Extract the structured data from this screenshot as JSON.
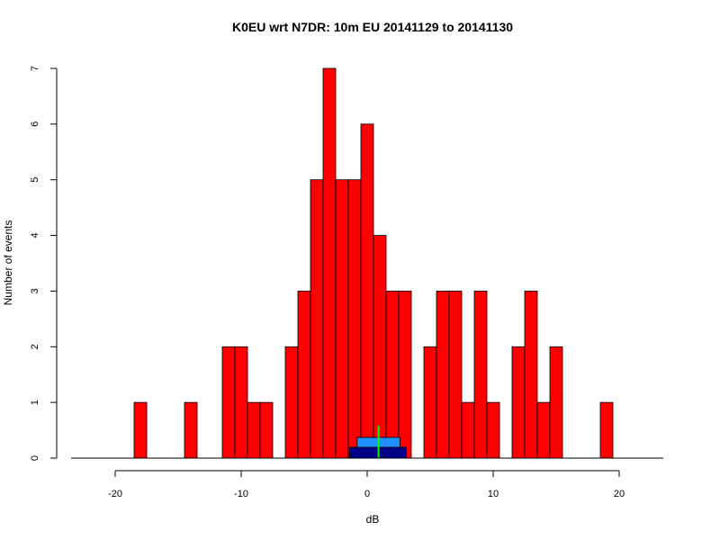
{
  "chart_data": {
    "type": "bar",
    "title": "K0EU wrt N7DR: 10m EU 20141129 to 20141130",
    "xlabel": "dB",
    "ylabel": "Number of events",
    "xlim": [
      -23.5,
      23.5
    ],
    "ylim": [
      0,
      7
    ],
    "xticks": [
      -20,
      -10,
      0,
      10,
      20
    ],
    "yticks": [
      0,
      1,
      2,
      3,
      4,
      5,
      6,
      7
    ],
    "bin_width": 1,
    "bar_color": "#ff0000",
    "bins": [
      {
        "x": -18,
        "count": 1
      },
      {
        "x": -14,
        "count": 1
      },
      {
        "x": -11,
        "count": 2
      },
      {
        "x": -10,
        "count": 2
      },
      {
        "x": -9,
        "count": 1
      },
      {
        "x": -8,
        "count": 1
      },
      {
        "x": -6,
        "count": 2
      },
      {
        "x": -5,
        "count": 3
      },
      {
        "x": -4,
        "count": 5
      },
      {
        "x": -3,
        "count": 7
      },
      {
        "x": -2,
        "count": 5
      },
      {
        "x": -1,
        "count": 5
      },
      {
        "x": 0,
        "count": 6
      },
      {
        "x": 1,
        "count": 4
      },
      {
        "x": 2,
        "count": 3
      },
      {
        "x": 3,
        "count": 3
      },
      {
        "x": 5,
        "count": 2
      },
      {
        "x": 6,
        "count": 3
      },
      {
        "x": 7,
        "count": 3
      },
      {
        "x": 8,
        "count": 1
      },
      {
        "x": 9,
        "count": 3
      },
      {
        "x": 10,
        "count": 1
      },
      {
        "x": 12,
        "count": 2
      },
      {
        "x": 13,
        "count": 3
      },
      {
        "x": 14,
        "count": 1
      },
      {
        "x": 15,
        "count": 2
      },
      {
        "x": 19,
        "count": 1
      }
    ],
    "summary_markers": {
      "outer_range": [
        -1.4,
        3.1
      ],
      "outer_color": "#00008b",
      "inner_range": [
        -0.8,
        2.6
      ],
      "inner_color": "#1e90ff",
      "central_value": 0.9,
      "central_color": "#00ff00"
    }
  }
}
